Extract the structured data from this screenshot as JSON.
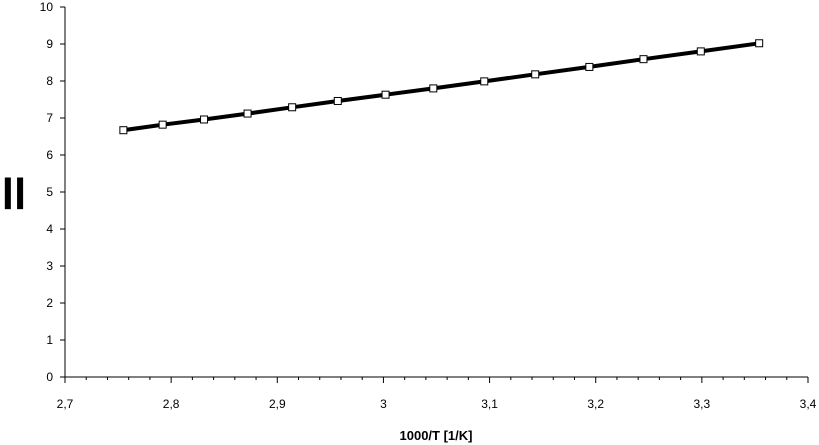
{
  "chart_data": {
    "type": "line",
    "title": "",
    "xlabel": "1000/T [1/K]",
    "ylabel": "ll",
    "xlim": [
      2.7,
      3.4
    ],
    "ylim": [
      0,
      10
    ],
    "x_ticks": [
      "2,7",
      "2,8",
      "2,9",
      "3",
      "3,1",
      "3,2",
      "3,3",
      "3,4"
    ],
    "y_ticks": [
      "0",
      "1",
      "2",
      "3",
      "4",
      "5",
      "6",
      "7",
      "8",
      "9",
      "10"
    ],
    "grid": false,
    "legend": "none",
    "series": [
      {
        "color": "#000000",
        "marker": "square",
        "x": [
          2.755,
          2.792,
          2.831,
          2.872,
          2.914,
          2.957,
          3.002,
          3.047,
          3.095,
          3.143,
          3.194,
          3.245,
          3.299,
          3.354
        ],
        "y": [
          6.67,
          6.82,
          6.96,
          7.12,
          7.29,
          7.46,
          7.63,
          7.8,
          7.99,
          8.18,
          8.38,
          8.59,
          8.8,
          9.02
        ]
      }
    ]
  }
}
